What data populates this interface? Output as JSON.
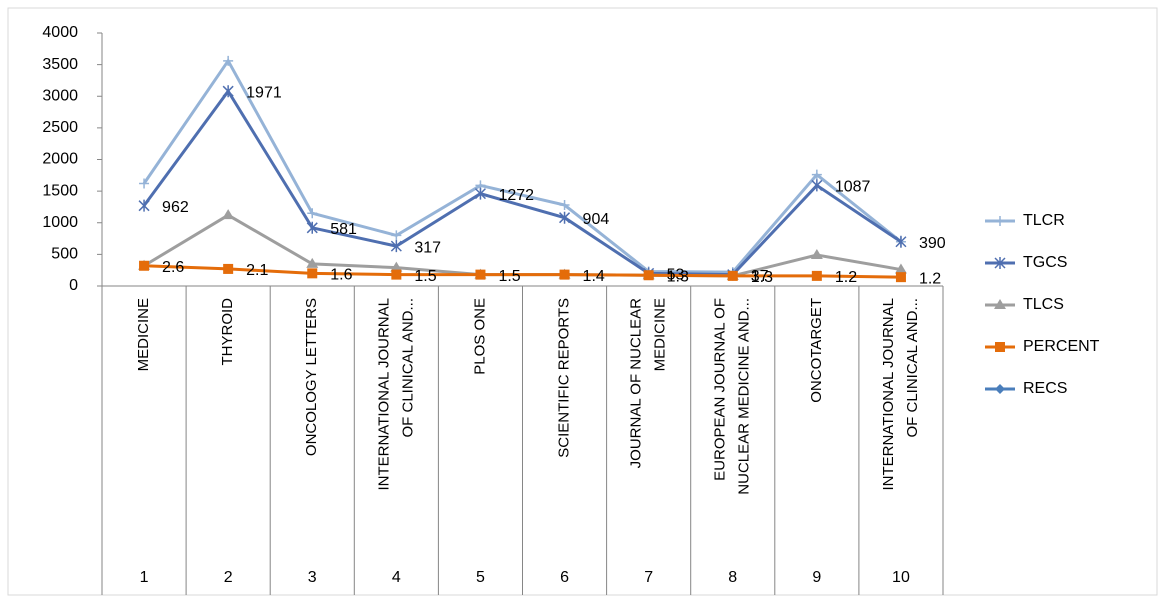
{
  "chart_data": {
    "type": "line",
    "ranks": [
      "1",
      "2",
      "3",
      "4",
      "5",
      "6",
      "7",
      "8",
      "9",
      "10"
    ],
    "categories": [
      [
        "MEDICINE"
      ],
      [
        "THYROID"
      ],
      [
        "ONCOLOGY LETTERS"
      ],
      [
        "INTERNATIONAL JOURNAL",
        "OF CLINICAL AND..."
      ],
      [
        "PLOS ONE"
      ],
      [
        "SCIENTIFIC REPORTS"
      ],
      [
        "JOURNAL OF NUCLEAR",
        "MEDICINE"
      ],
      [
        "EUROPEAN JOURNAL OF",
        "NUCLEAR MEDICINE AND..."
      ],
      [
        "ONCOTARGET"
      ],
      [
        "INTERNATIONAL JOURNAL",
        "OF CLINICAL AND..."
      ]
    ],
    "ylim": [
      0,
      4000
    ],
    "yticks": [
      0,
      500,
      1000,
      1500,
      2000,
      2500,
      3000,
      3500,
      4000
    ],
    "grid": false,
    "legend": "right",
    "series": [
      {
        "name": "TLCR",
        "color": "#95b3d7",
        "marker": "plus",
        "values": [
          1620,
          3560,
          1150,
          800,
          1590,
          1280,
          230,
          220,
          1760,
          700
        ]
      },
      {
        "name": "TGCS",
        "color": "#4f6fb0",
        "marker": "star",
        "values": [
          1270,
          3080,
          920,
          630,
          1460,
          1080,
          200,
          180,
          1590,
          700
        ],
        "data_labels": [
          "962",
          "1971",
          "581",
          "317",
          "1272",
          "904",
          "53",
          "37",
          "1087",
          "390"
        ]
      },
      {
        "name": "TLCS",
        "color": "#9e9e9e",
        "marker": "triangle",
        "values": [
          320,
          1120,
          350,
          290,
          180,
          180,
          170,
          160,
          490,
          260
        ]
      },
      {
        "name": "PERCENT",
        "color": "#e46c0a",
        "marker": "square",
        "values": [
          320,
          270,
          200,
          180,
          180,
          180,
          170,
          160,
          160,
          140
        ],
        "data_labels": [
          "2.6",
          "2.1",
          "1.6",
          "1.5",
          "1.5",
          "1.4",
          "1.3",
          "1.3",
          "1.2",
          "1.2"
        ]
      },
      {
        "name": "RECS",
        "color": "#4a7ebb",
        "marker": "diamond",
        "values": [
          null,
          null,
          null,
          null,
          null,
          null,
          null,
          null,
          null,
          null
        ]
      }
    ]
  }
}
